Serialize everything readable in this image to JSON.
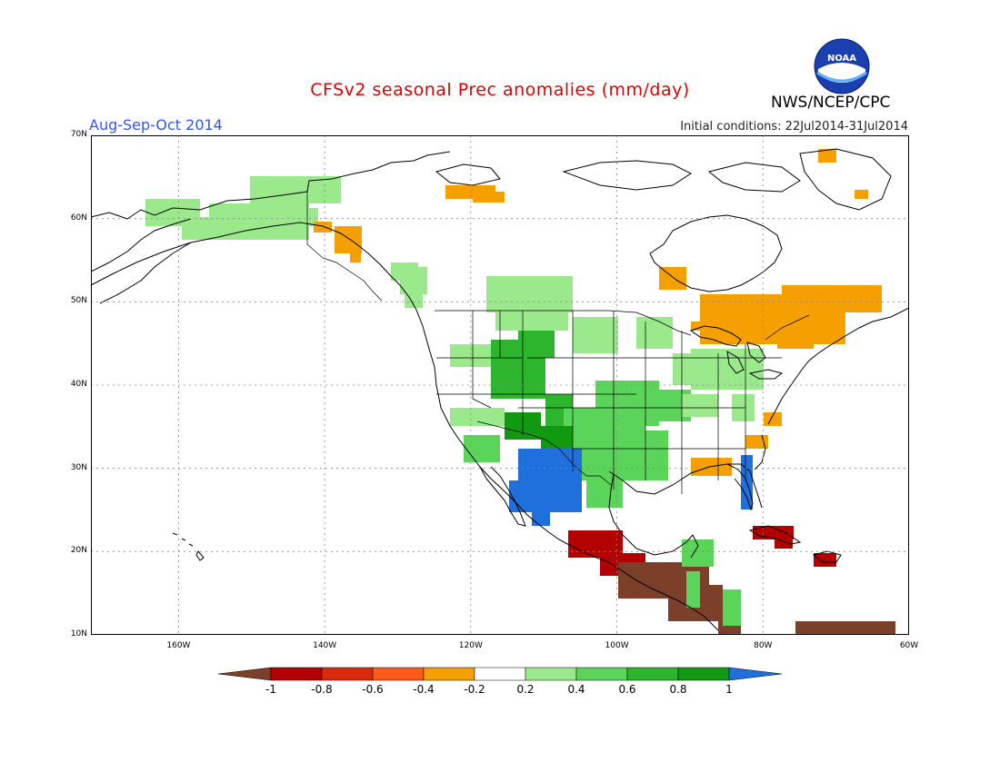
{
  "title": "CFSv2 seasonal Prec anomalies (mm/day)",
  "period": "Aug-Sep-Oct 2014",
  "initial_conditions": "Initial conditions: 22Jul2014-31Jul2014",
  "agency": "NWS/NCEP/CPC",
  "logo_text": "NOAA",
  "lat_labels": [
    "70N",
    "60N",
    "50N",
    "40N",
    "30N",
    "20N",
    "10N"
  ],
  "lon_labels": [
    "160W",
    "140W",
    "120W",
    "100W",
    "80W",
    "60W"
  ],
  "colorbar": {
    "labels": [
      "-1",
      "-0.8",
      "-0.6",
      "-0.4",
      "-0.2",
      "0.2",
      "0.4",
      "0.6",
      "0.8",
      "1"
    ],
    "colors": [
      "#7b3f2a",
      "#b30000",
      "#d92b0b",
      "#ff5a1a",
      "#f5a000",
      "#ffffff",
      "#9aea8c",
      "#5bd45a",
      "#2db52d",
      "#119a11",
      "#1f6fdc"
    ]
  },
  "map_data": {
    "extent": {
      "lon_min": -172,
      "lon_max": -60,
      "lat_min": 10,
      "lat_max": 70
    },
    "anomaly_regions": [
      {
        "name": "Alaska",
        "class": 0.3
      },
      {
        "name": "Yukon",
        "class": 0.3
      },
      {
        "name": "Southeast Alaska coast",
        "class": -0.3
      },
      {
        "name": "British Columbia coast",
        "class": 0.3
      },
      {
        "name": "Canadian Prairies",
        "class": 0.3
      },
      {
        "name": "Northern Great Plains",
        "class": 0.3
      },
      {
        "name": "Central Rockies",
        "class": 0.7
      },
      {
        "name": "Central Plains",
        "class": 0.5
      },
      {
        "name": "Ohio Valley",
        "class": 0.3
      },
      {
        "name": "Arizona / New Mexico",
        "class": 0.9
      },
      {
        "name": "Texas",
        "class": 0.5
      },
      {
        "name": "Northwest Mexico",
        "class": 1.0
      },
      {
        "name": "Florida peninsula",
        "class": 1.0
      },
      {
        "name": "Gulf coast",
        "class": -0.3
      },
      {
        "name": "Southern Quebec / Ontario",
        "class": -0.3
      },
      {
        "name": "Hudson Bay region",
        "class": -0.3
      },
      {
        "name": "Southern Mexico",
        "class": -0.7
      },
      {
        "name": "Central America",
        "class": -1.0
      },
      {
        "name": "Cuba",
        "class": -0.7
      },
      {
        "name": "Hispaniola",
        "class": -0.7
      },
      {
        "name": "Venezuela coast",
        "class": -1.0
      },
      {
        "name": "Yucatan",
        "class": 0.4
      }
    ]
  }
}
